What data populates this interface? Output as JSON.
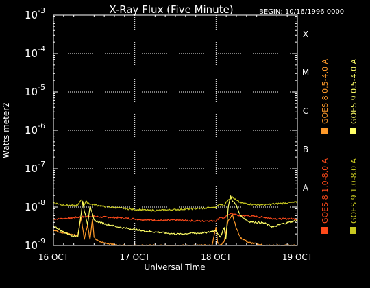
{
  "chart_data": {
    "type": "line",
    "title": "X-Ray Flux (Five Minute)",
    "begin_label": "BEGIN: 10/16/1996 0000",
    "xlabel": "Universal Time",
    "ylabel": "Watts meter2",
    "y_scale": "log",
    "ylim": [
      1e-09,
      0.001
    ],
    "y_ticks": [
      {
        "base": "10",
        "exp": "-9",
        "value": 1e-09
      },
      {
        "base": "10",
        "exp": "-8",
        "value": 1e-08
      },
      {
        "base": "10",
        "exp": "-7",
        "value": 1e-07
      },
      {
        "base": "10",
        "exp": "-6",
        "value": 1e-06
      },
      {
        "base": "10",
        "exp": "-5",
        "value": 1e-05
      },
      {
        "base": "10",
        "exp": "-4",
        "value": 0.0001
      },
      {
        "base": "10",
        "exp": "-3",
        "value": 0.001
      }
    ],
    "xlim": [
      0,
      3
    ],
    "x_ticks": [
      {
        "label": "16 OCT",
        "value": 0
      },
      {
        "label": "17 OCT",
        "value": 1
      },
      {
        "label": "18 OCT",
        "value": 2
      },
      {
        "label": "19 OCT",
        "value": 3
      }
    ],
    "flare_classes": [
      {
        "label": "A",
        "value": 1e-08
      },
      {
        "label": "B",
        "value": 1e-07
      },
      {
        "label": "C",
        "value": 1e-06
      },
      {
        "label": "M",
        "value": 1e-05
      },
      {
        "label": "X",
        "value": 0.0001
      }
    ],
    "grid": true,
    "legend_position": "right",
    "series": [
      {
        "name": "GOES 8 1.0-8.0 A",
        "color": "#ff4a1a",
        "x": [
          0,
          0.1,
          0.2,
          0.3,
          0.38,
          0.45,
          0.5,
          0.55,
          0.6,
          0.65,
          0.7,
          0.8,
          0.9,
          1.0,
          1.1,
          1.2,
          1.3,
          1.4,
          1.5,
          1.6,
          1.7,
          1.8,
          1.9,
          2.0,
          2.05,
          2.1,
          2.15,
          2.2,
          2.25,
          2.3,
          2.4,
          2.5,
          2.6,
          2.7,
          2.8,
          2.9,
          3.0
        ],
        "y": [
          4.8e-09,
          5e-09,
          5.2e-09,
          5.4e-09,
          5.6e-09,
          5.8e-09,
          5.7e-09,
          5.6e-09,
          5.5e-09,
          5.5e-09,
          5.4e-09,
          5.3e-09,
          5.1e-09,
          4.9e-09,
          4.7e-09,
          4.6e-09,
          4.5e-09,
          4.5e-09,
          4.6e-09,
          4.5e-09,
          4.4e-09,
          4.3e-09,
          4.4e-09,
          4.4e-09,
          5.5e-09,
          5e-09,
          6.5e-09,
          6.8e-09,
          6.2e-09,
          6e-09,
          5.9e-09,
          5.6e-09,
          5.4e-09,
          5e-09,
          4.9e-09,
          5e-09,
          4.8e-09
        ]
      },
      {
        "name": "GOES 8 0.5-4.0 A",
        "color": "#ff9a2a",
        "x": [
          0,
          0.1,
          0.2,
          0.3,
          0.34,
          0.38,
          0.42,
          0.45,
          0.48,
          0.5,
          0.55,
          0.6,
          0.7,
          0.8,
          0.9,
          1.0,
          1.2,
          1.5,
          1.8,
          1.95,
          2.0,
          2.02,
          2.05,
          2.1,
          2.15,
          2.2,
          2.25,
          2.3,
          2.4,
          2.5,
          2.6,
          2.8,
          3.0
        ],
        "y": [
          2.5e-09,
          2.2e-09,
          2e-09,
          1.8e-09,
          5.5e-09,
          1.5e-09,
          3.5e-09,
          1.4e-09,
          5e-09,
          1.6e-09,
          1.3e-09,
          1.2e-09,
          1.1e-09,
          1e-09,
          1e-09,
          1e-09,
          1e-09,
          1e-09,
          1e-09,
          1e-09,
          3e-09,
          1.2e-09,
          1e-09,
          1.3e-09,
          4.5e-09,
          6.5e-09,
          2.8e-09,
          1.6e-09,
          1.2e-09,
          1.1e-09,
          1e-09,
          1e-09,
          1e-09
        ]
      },
      {
        "name": "GOES 9 1.0-8.0 A",
        "color": "#c8c820",
        "x": [
          0,
          0.1,
          0.2,
          0.3,
          0.34,
          0.38,
          0.4,
          0.45,
          0.5,
          0.6,
          0.7,
          0.8,
          0.9,
          1.0,
          1.1,
          1.2,
          1.3,
          1.4,
          1.5,
          1.6,
          1.7,
          1.8,
          1.9,
          2.0,
          2.05,
          2.1,
          2.15,
          2.2,
          2.25,
          2.3,
          2.4,
          2.5,
          2.6,
          2.7,
          2.8,
          2.9,
          3.0
        ],
        "y": [
          1.3e-08,
          1.15e-08,
          1.1e-08,
          1.1e-08,
          1.6e-08,
          1.15e-08,
          1.4e-08,
          1.2e-08,
          1.15e-08,
          1.05e-08,
          1e-08,
          9.5e-09,
          9e-09,
          8.7e-09,
          8.4e-09,
          8.2e-09,
          8.2e-09,
          8.4e-09,
          8.6e-09,
          8.8e-09,
          9e-09,
          9.2e-09,
          9.5e-09,
          1e-08,
          1.2e-08,
          1.1e-08,
          1.6e-08,
          1.8e-08,
          1.5e-08,
          1.3e-08,
          1.2e-08,
          1.15e-08,
          1.15e-08,
          1.2e-08,
          1.25e-08,
          1.3e-08,
          1.35e-08
        ]
      },
      {
        "name": "GOES 9 0.5-4.0 A",
        "color": "#ffff66",
        "x": [
          0,
          0.05,
          0.1,
          0.15,
          0.2,
          0.3,
          0.34,
          0.36,
          0.38,
          0.42,
          0.45,
          0.5,
          0.6,
          0.7,
          0.8,
          0.9,
          1.0,
          1.1,
          1.2,
          1.3,
          1.4,
          1.5,
          1.6,
          1.7,
          1.8,
          1.9,
          2.0,
          2.05,
          2.1,
          2.12,
          2.15,
          2.18,
          2.2,
          2.25,
          2.3,
          2.4,
          2.5,
          2.6,
          2.7,
          2.8,
          2.9,
          3.0
        ],
        "y": [
          3.2e-09,
          2.8e-09,
          2.4e-09,
          2.1e-09,
          1.9e-09,
          1.7e-09,
          6.5e-09,
          1.4e-08,
          8e-09,
          3.5e-09,
          1.1e-08,
          4.5e-09,
          3.8e-09,
          3.4e-09,
          3e-09,
          2.8e-09,
          2.6e-09,
          2.4e-09,
          2.3e-09,
          2.2e-09,
          2.1e-09,
          2e-09,
          2e-09,
          2.1e-09,
          2.1e-09,
          2.2e-09,
          2.5e-09,
          1.6e-09,
          3e-09,
          1.4e-09,
          1e-08,
          1.9e-08,
          1.5e-08,
          1.1e-08,
          6e-09,
          4.2e-09,
          4e-09,
          3.8e-09,
          3e-09,
          3.6e-09,
          4e-09,
          4.5e-09
        ]
      }
    ]
  }
}
